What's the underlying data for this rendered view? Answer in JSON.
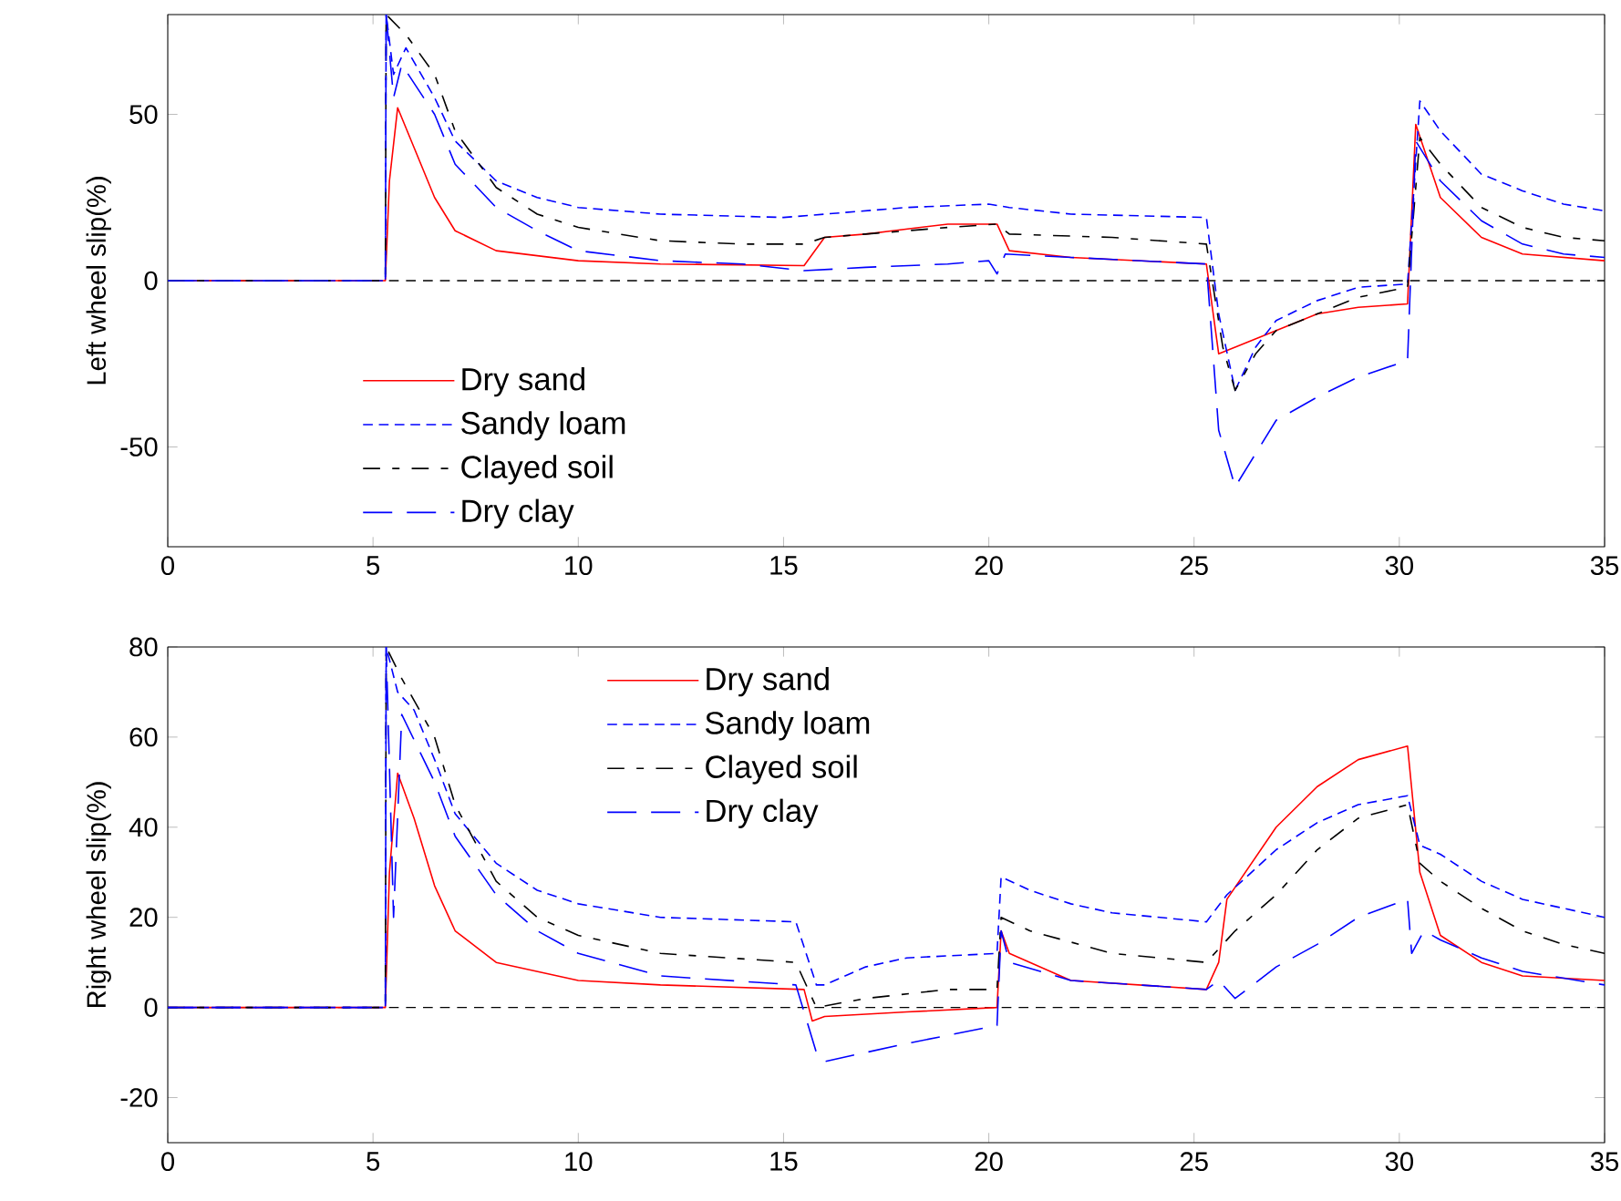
{
  "chart_data": [
    {
      "type": "line",
      "ylabel": "Left wheel slip(%)",
      "xlim": [
        0,
        35
      ],
      "xticks": [
        0,
        5,
        10,
        15,
        20,
        25,
        30,
        35
      ],
      "ylim": [
        -80,
        80
      ],
      "yticks": [
        -50,
        0,
        50
      ],
      "legend": "bottom left",
      "ref_lines": [
        {
          "axis": "y",
          "value": 0,
          "color": "#000000",
          "line_style": "dashed"
        }
      ],
      "series": [
        {
          "name": "Dry sand",
          "color": "#ff0000",
          "line_style": "solid",
          "x": [
            0,
            5.3,
            5.32,
            5.4,
            5.6,
            6,
            6.5,
            7,
            8,
            10,
            12,
            15.5,
            16,
            17,
            19,
            20.2,
            20.5,
            22,
            25.3,
            25.6,
            26,
            27,
            28,
            29,
            30.2,
            30.4,
            31,
            32,
            33,
            35
          ],
          "values": [
            0,
            0,
            null,
            30,
            52,
            40,
            25,
            15,
            9,
            6,
            5,
            4.5,
            13,
            14,
            17,
            17,
            9,
            7,
            5,
            -22,
            -20,
            -15,
            -10,
            -8,
            -7,
            47,
            25,
            13,
            8,
            6
          ]
        },
        {
          "name": "Sandy loam",
          "color": "#0000ff",
          "line_style": "dashed",
          "x": [
            0,
            5.3,
            5.32,
            5.5,
            5.8,
            6.5,
            7,
            8,
            9,
            10,
            12,
            15,
            16,
            18,
            20,
            20.5,
            22,
            25.3,
            25.6,
            26,
            26.5,
            27,
            28,
            29,
            30.2,
            30.5,
            31,
            32,
            33,
            34,
            35
          ],
          "values": [
            0,
            0,
            80,
            62,
            70,
            55,
            42,
            30,
            25,
            22,
            20,
            19,
            20,
            22,
            23,
            22,
            20,
            19,
            -10,
            -33,
            -20,
            -12,
            -6,
            -2,
            -1,
            54,
            45,
            32,
            27,
            23,
            21
          ]
        },
        {
          "name": "Clayed soil",
          "color": "#000000",
          "line_style": "dashed",
          "x": [
            0,
            5.3,
            5.32,
            5.8,
            6.5,
            7,
            8,
            9,
            10,
            12,
            14,
            15.5,
            16,
            17,
            19,
            20.2,
            20.5,
            23,
            25.3,
            25.7,
            26,
            26.5,
            27,
            28,
            29,
            30.2,
            30.5,
            31,
            32,
            33,
            34,
            35
          ],
          "values": [
            0,
            0,
            80,
            74,
            62,
            45,
            28,
            20,
            16,
            12,
            11,
            11,
            13,
            14,
            16,
            17,
            14,
            13,
            11,
            -20,
            -33,
            -22,
            -15,
            -10,
            -5,
            -2,
            43,
            35,
            22,
            16,
            13,
            12
          ]
        },
        {
          "name": "Dry clay",
          "color": "#0000ff",
          "line_style": "dashed",
          "x": [
            0,
            5.3,
            5.32,
            5.5,
            5.7,
            6.5,
            7,
            8,
            9,
            10,
            12,
            14,
            15.5,
            17,
            19,
            20,
            20.2,
            20.4,
            22,
            25.3,
            25.6,
            26,
            26.5,
            27,
            28,
            29,
            30.2,
            30.4,
            31,
            32,
            33,
            34,
            35
          ],
          "values": [
            0,
            0,
            80,
            55,
            65,
            50,
            35,
            22,
            15,
            9,
            6,
            5,
            3,
            4,
            5,
            6,
            2,
            8,
            7,
            5,
            -45,
            -62,
            -52,
            -42,
            -35,
            -29,
            -24,
            42,
            30,
            18,
            11,
            8,
            7
          ]
        }
      ]
    },
    {
      "type": "line",
      "ylabel": "Right wheel slip(%)",
      "xlim": [
        0,
        35
      ],
      "xticks": [
        0,
        5,
        10,
        15,
        20,
        25,
        30,
        35
      ],
      "ylim": [
        -30,
        80
      ],
      "yticks": [
        -20,
        0,
        20,
        40,
        60,
        80
      ],
      "legend": "top",
      "ref_lines": [
        {
          "axis": "y",
          "value": 0,
          "color": "#000000",
          "line_style": "dashed"
        }
      ],
      "series": [
        {
          "name": "Dry sand",
          "color": "#ff0000",
          "line_style": "solid",
          "x": [
            0,
            5.3,
            5.32,
            5.4,
            5.6,
            6,
            6.5,
            7,
            8,
            10,
            12,
            15.5,
            15.7,
            16,
            18,
            20.2,
            20.3,
            20.5,
            22,
            25.3,
            25.6,
            25.8,
            27,
            28,
            29,
            30.2,
            30.5,
            31,
            32,
            33,
            35
          ],
          "values": [
            0,
            0,
            null,
            30,
            52,
            42,
            27,
            17,
            10,
            6,
            5,
            4,
            -3,
            -2,
            -1,
            0,
            17,
            12,
            6,
            4,
            10,
            24,
            40,
            49,
            55,
            58,
            30,
            16,
            10,
            7,
            6
          ]
        },
        {
          "name": "Sandy loam",
          "color": "#0000ff",
          "line_style": "dashed",
          "x": [
            0,
            5.3,
            5.32,
            5.6,
            6,
            6.5,
            7,
            8,
            9,
            10,
            12,
            15.3,
            15.8,
            16,
            17,
            18,
            20.2,
            20.3,
            21,
            22,
            23,
            25.3,
            25.8,
            27,
            28,
            29,
            30.2,
            30.5,
            31,
            32,
            33,
            34,
            35
          ],
          "values": [
            0,
            0,
            80,
            70,
            66,
            55,
            43,
            32,
            26,
            23,
            20,
            19,
            5,
            5,
            9,
            11,
            12,
            29,
            26,
            23,
            21,
            19,
            25,
            35,
            41,
            45,
            47,
            36,
            34,
            28,
            24,
            22,
            20
          ]
        },
        {
          "name": "Clayed soil",
          "color": "#000000",
          "line_style": "dashed",
          "x": [
            0,
            5.3,
            5.32,
            5.7,
            6.5,
            7,
            8,
            9,
            10,
            12,
            15.3,
            15.8,
            17,
            19,
            20.2,
            20.3,
            21,
            23,
            25.3,
            26,
            27,
            28,
            29,
            30.2,
            30.5,
            31,
            32,
            33,
            34,
            35
          ],
          "values": [
            0,
            0,
            80,
            73,
            60,
            45,
            28,
            20,
            16,
            12,
            10,
            0,
            2,
            4,
            4,
            20,
            17,
            12,
            10,
            17,
            25,
            35,
            42,
            45,
            32,
            28,
            22,
            17,
            14,
            12
          ]
        },
        {
          "name": "Dry clay",
          "color": "#0000ff",
          "line_style": "dashed",
          "x": [
            0,
            5.3,
            5.32,
            5.5,
            5.7,
            6.5,
            7,
            8,
            9,
            10,
            12,
            15.3,
            15.8,
            16,
            18,
            20.2,
            20.3,
            20.5,
            22,
            25.3,
            25.6,
            26,
            27,
            28,
            29,
            30.2,
            30.3,
            30.6,
            31,
            32,
            33,
            35
          ],
          "values": [
            0,
            0,
            80,
            20,
            65,
            50,
            38,
            25,
            17,
            12,
            7,
            5,
            -10,
            -12,
            -8,
            -4,
            17,
            10,
            6,
            4,
            6,
            2,
            9,
            14,
            20,
            24,
            12,
            17,
            15,
            11,
            8,
            5
          ]
        }
      ]
    }
  ]
}
